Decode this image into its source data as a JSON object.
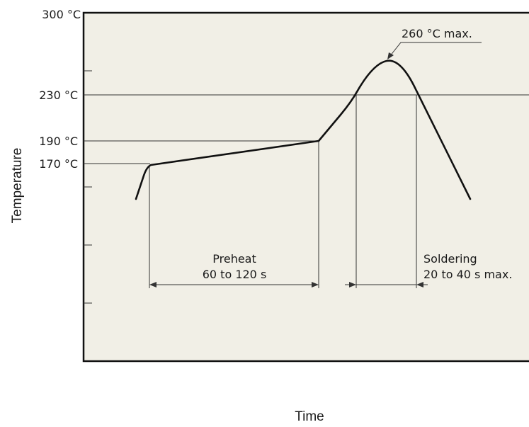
{
  "colors": {
    "plot_background": "#f1efe6",
    "frame": "#111111",
    "curve": "#111111",
    "lines": "#333333"
  },
  "y_axis": {
    "title": "Temperature",
    "tick_labels": [
      "300 °C",
      "230 °C",
      "190 °C",
      "170 °C"
    ]
  },
  "x_axis": {
    "title": "Time"
  },
  "annotations": {
    "peak": "260 °C max.",
    "preheat_title": "Preheat",
    "preheat_duration": "60 to 120 s",
    "soldering_title": "Soldering",
    "soldering_duration": "20 to 40 s max."
  }
}
